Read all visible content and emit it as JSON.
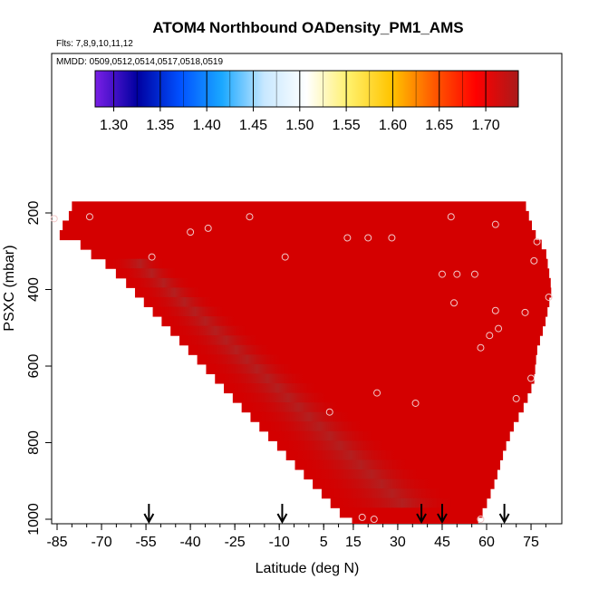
{
  "chart_data": {
    "type": "heatmap",
    "title": "ATOM4 Northbound OADensity_PM1_AMS",
    "flights_label": "Flts: 7,8,9,10,11,12",
    "dates_label": "MMDD: 0509,0512,0514,0517,0518,0519",
    "xlabel": "Latitude (deg N)",
    "ylabel": "PSXC (mbar)",
    "xlim": [
      -87,
      83
    ],
    "ylim": [
      1010,
      50
    ],
    "x_ticks": [
      "-85",
      "-70",
      "-55",
      "-40",
      "-25",
      "-10",
      "5",
      "15",
      "30",
      "45",
      "60",
      "75"
    ],
    "y_ticks": [
      "200",
      "400",
      "600",
      "800",
      "1000"
    ],
    "colorbar": {
      "min": 1.28,
      "max": 1.735,
      "tick_labels": [
        "1.30",
        "1.35",
        "1.40",
        "1.45",
        "1.50",
        "1.55",
        "1.60",
        "1.65",
        "1.70"
      ],
      "colors": [
        "#7a1fe6",
        "#0000a0",
        "#0050ff",
        "#1aa8ff",
        "#c8e8ff",
        "#ffffff",
        "#fff06a",
        "#ffc400",
        "#ff5a00",
        "#ff0000",
        "#aa1a1a"
      ]
    },
    "fill_color": "#d40000",
    "dark_band_color": "#b02525",
    "coverage_right_edge_lat": [
      [
        150,
        72
      ],
      [
        250,
        76
      ],
      [
        300,
        80
      ],
      [
        400,
        82
      ],
      [
        480,
        80
      ],
      [
        560,
        77
      ],
      [
        640,
        76
      ],
      [
        700,
        73
      ],
      [
        760,
        69
      ],
      [
        820,
        66
      ],
      [
        900,
        63
      ],
      [
        960,
        60
      ],
      [
        1010,
        57
      ]
    ],
    "coverage_left_edge_lat": [
      [
        150,
        -80
      ],
      [
        195,
        -80
      ],
      [
        255,
        -85
      ],
      [
        275,
        -78
      ],
      [
        300,
        -75
      ],
      [
        330,
        -69
      ],
      [
        380,
        -62
      ],
      [
        430,
        -56
      ],
      [
        480,
        -50
      ],
      [
        530,
        -44
      ],
      [
        580,
        -38
      ],
      [
        630,
        -32
      ],
      [
        680,
        -26
      ],
      [
        730,
        -20
      ],
      [
        780,
        -14
      ],
      [
        830,
        -8
      ],
      [
        880,
        -2
      ],
      [
        930,
        4
      ],
      [
        980,
        10
      ],
      [
        1010,
        15
      ]
    ],
    "points": [
      {
        "lat": -86,
        "p": 215
      },
      {
        "lat": -74,
        "p": 210
      },
      {
        "lat": -53,
        "p": 315
      },
      {
        "lat": -40,
        "p": 250
      },
      {
        "lat": -34,
        "p": 240
      },
      {
        "lat": -20,
        "p": 210
      },
      {
        "lat": -8,
        "p": 315
      },
      {
        "lat": 7,
        "p": 720
      },
      {
        "lat": 13,
        "p": 265
      },
      {
        "lat": 20,
        "p": 265
      },
      {
        "lat": 23,
        "p": 670
      },
      {
        "lat": 28,
        "p": 265
      },
      {
        "lat": 36,
        "p": 697
      },
      {
        "lat": 45,
        "p": 360
      },
      {
        "lat": 48,
        "p": 210
      },
      {
        "lat": 49,
        "p": 435
      },
      {
        "lat": 50,
        "p": 360
      },
      {
        "lat": 56,
        "p": 360
      },
      {
        "lat": 58,
        "p": 552
      },
      {
        "lat": 61,
        "p": 520
      },
      {
        "lat": 63,
        "p": 230
      },
      {
        "lat": 63,
        "p": 455
      },
      {
        "lat": 64,
        "p": 502
      },
      {
        "lat": 70,
        "p": 685
      },
      {
        "lat": 73,
        "p": 460
      },
      {
        "lat": 75,
        "p": 632
      },
      {
        "lat": 76,
        "p": 325
      },
      {
        "lat": 77,
        "p": 275
      },
      {
        "lat": 81,
        "p": 420
      },
      {
        "lat": 18,
        "p": 995
      },
      {
        "lat": 22,
        "p": 1000
      },
      {
        "lat": 58,
        "p": 1000
      }
    ],
    "flight_arrows_lat": [
      -54,
      -9,
      38,
      45,
      66
    ]
  }
}
